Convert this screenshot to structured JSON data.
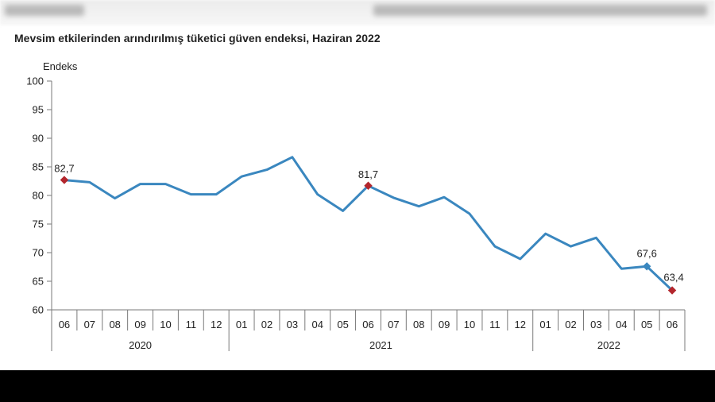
{
  "chart_data": {
    "type": "line",
    "title": "Mevsim etkilerinden arındırılmış tüketici güven endeksi, Haziran 2022",
    "ylabel": "Endeks",
    "ylim": [
      60,
      100
    ],
    "yticks": [
      60,
      65,
      70,
      75,
      80,
      85,
      90,
      95,
      100
    ],
    "grid": false,
    "x": [
      "06",
      "07",
      "08",
      "09",
      "10",
      "11",
      "12",
      "01",
      "02",
      "03",
      "04",
      "05",
      "06",
      "07",
      "08",
      "09",
      "10",
      "11",
      "12",
      "01",
      "02",
      "03",
      "04",
      "05",
      "06"
    ],
    "years": [
      {
        "label": "2020",
        "start": 0,
        "end": 6
      },
      {
        "label": "2021",
        "start": 7,
        "end": 18
      },
      {
        "label": "2022",
        "start": 19,
        "end": 24
      }
    ],
    "series": [
      {
        "values": [
          82.7,
          82.3,
          79.5,
          82.0,
          82.0,
          80.2,
          80.2,
          83.3,
          84.5,
          86.7,
          80.2,
          77.3,
          81.7,
          79.6,
          78.1,
          79.7,
          76.8,
          71.1,
          68.9,
          73.3,
          71.1,
          72.6,
          67.2,
          67.6,
          63.4
        ],
        "color": "#3a87bf"
      }
    ],
    "highlights": [
      {
        "index": 0,
        "label": "82,7",
        "color": "#b3262d"
      },
      {
        "index": 12,
        "label": "81,7",
        "color": "#b3262d"
      },
      {
        "index": 23,
        "label": "67,6",
        "color": "#3a87bf"
      },
      {
        "index": 24,
        "label": "63,4",
        "color": "#b3262d"
      }
    ]
  }
}
